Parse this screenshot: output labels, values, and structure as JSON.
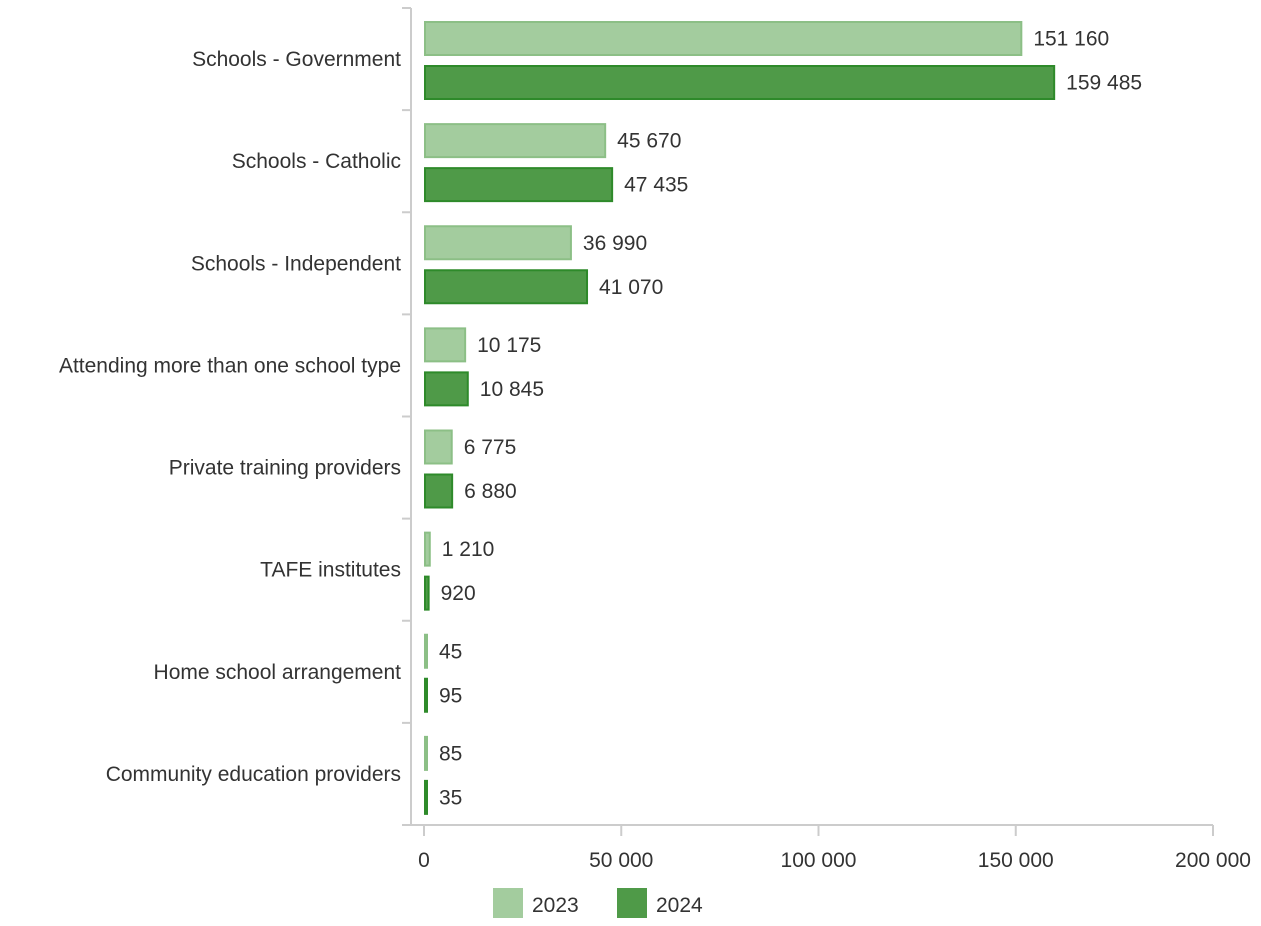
{
  "chart_data": {
    "type": "bar",
    "orientation": "horizontal",
    "categories": [
      "Schools - Government",
      "Schools - Catholic",
      "Schools - Independent",
      "Attending more than one school type",
      "Private training providers",
      "TAFE institutes",
      "Home school arrangement",
      "Community education providers"
    ],
    "series": [
      {
        "name": "2023",
        "color": "#a3cc9e",
        "stroke": "#8cbf86",
        "values": [
          151160,
          45670,
          36990,
          10175,
          6775,
          1210,
          45,
          85
        ],
        "labels": [
          "151 160",
          "45 670",
          "36 990",
          "10 175",
          "6 775",
          "1 210",
          "45",
          "85"
        ]
      },
      {
        "name": "2024",
        "color": "#4f9a48",
        "stroke": "#2e8a2a",
        "values": [
          159485,
          47435,
          41070,
          10845,
          6880,
          920,
          95,
          35
        ],
        "labels": [
          "159 485",
          "47 435",
          "41 070",
          "10 845",
          "6 880",
          "920",
          "95",
          "35"
        ]
      }
    ],
    "x_ticks": [
      0,
      50000,
      100000,
      150000,
      200000
    ],
    "x_tick_labels": [
      "0",
      "50 000",
      "100 000",
      "150 000",
      "200 000"
    ],
    "xlim": [
      0,
      200000
    ],
    "legend_position": "bottom-center",
    "grid": false,
    "axis_color": "#cccccc"
  }
}
